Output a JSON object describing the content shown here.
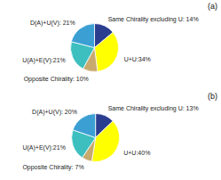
{
  "chart_data": [
    {
      "type": "pie",
      "title": "(a)",
      "categories": [
        "Same Chirality excluding U: 14%",
        "U+U:34%",
        "Opposite Chirality: 10%",
        "U(A)+E(V):21%",
        "D(A)+U(V): 21%"
      ],
      "values": [
        14,
        34,
        10,
        21,
        21
      ],
      "colors": [
        "#2b3d8f",
        "#ffff00",
        "#c8a96e",
        "#3dbfbf",
        "#3b9fd4"
      ]
    },
    {
      "type": "pie",
      "title": "(b)",
      "categories": [
        "Same Chirality excluding U: 13%",
        "U+U:40%",
        "Opposite Chirality: 7%",
        "U(A)+E(V):21%",
        "D(A)+U(V): 20%"
      ],
      "values": [
        13,
        40,
        7,
        21,
        20
      ],
      "colors": [
        "#2b3d8f",
        "#ffff00",
        "#c8a96e",
        "#3dbfbf",
        "#3b9fd4"
      ]
    }
  ]
}
